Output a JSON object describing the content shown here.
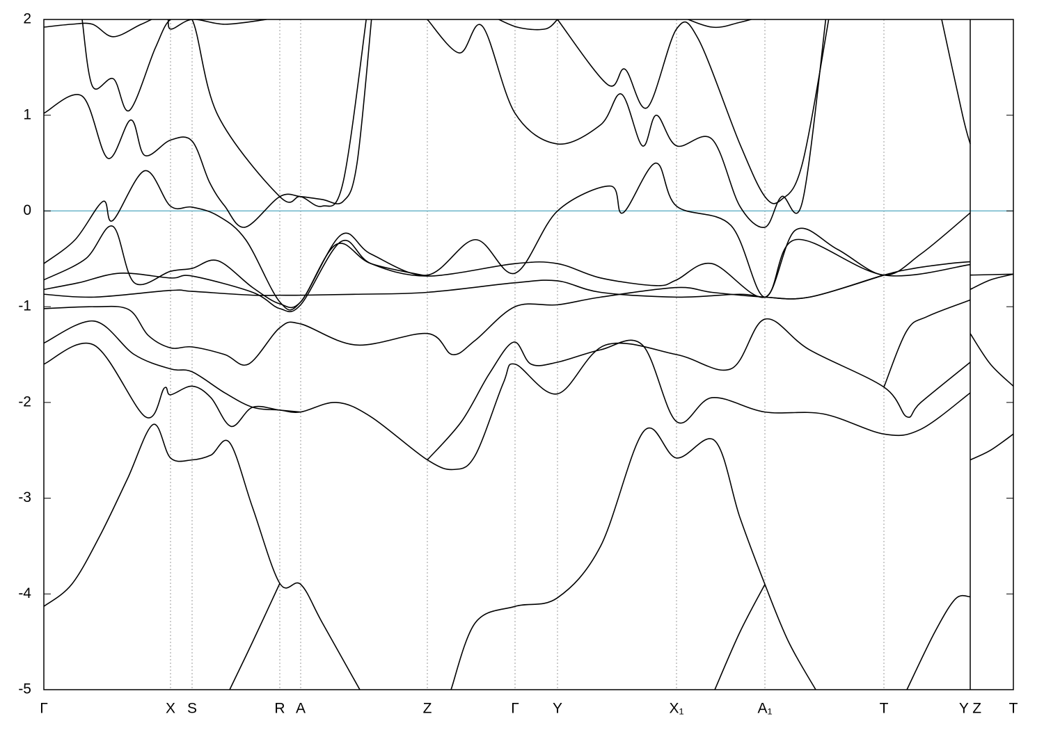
{
  "chart_data": {
    "type": "line",
    "xlim": [
      0,
      1393
    ],
    "ylim": [
      -5,
      2
    ],
    "yticks": [
      -5,
      -4,
      -3,
      -2,
      -1,
      0,
      1,
      2
    ],
    "xticks": [
      {
        "value": 0,
        "label": "Γ"
      },
      {
        "value": 182,
        "label": "X"
      },
      {
        "value": 213,
        "label": "S"
      },
      {
        "value": 339,
        "label": "R"
      },
      {
        "value": 369,
        "label": "A"
      },
      {
        "value": 551,
        "label": "Z"
      },
      {
        "value": 677,
        "label": "Γ"
      },
      {
        "value": 738,
        "label": "Y"
      },
      {
        "value": 909,
        "label": "X₁"
      },
      {
        "value": 1036,
        "label": "A₁"
      },
      {
        "value": 1207,
        "label": "T"
      },
      {
        "value": 1331,
        "label": "Y Z"
      },
      {
        "value": 1393,
        "label": "T"
      }
    ],
    "grid": true,
    "boundary_x": 1331,
    "reference_line": {
      "value": 0,
      "color": "#6ab4c8"
    },
    "series": [
      {
        "color": "#000000",
        "x": [
          0,
          40,
          80,
          120,
          157,
          182,
          213,
          240,
          267,
          300,
          339,
          369,
          400,
          454
        ],
        "values": [
          -4.13,
          -3.9,
          -3.4,
          -2.8,
          -2.23,
          -2.58,
          -2.6,
          -2.55,
          -2.42,
          -3.1,
          -3.89,
          -3.9,
          -4.3,
          -5
        ]
      },
      {
        "color": "#000000",
        "x": [
          267,
          300,
          339
        ],
        "values": [
          -5,
          -4.5,
          -3.89
        ]
      },
      {
        "color": "#000000",
        "x": [
          585,
          620,
          677,
          738,
          800,
          862,
          909,
          964,
          1000,
          1036,
          1070,
          1109
        ],
        "values": [
          -5,
          -4.3,
          -4.13,
          -4.04,
          -3.5,
          -2.3,
          -2.58,
          -2.4,
          -3.2,
          -3.9,
          -4.5,
          -5
        ]
      },
      {
        "color": "#000000",
        "x": [
          964,
          1000,
          1036
        ],
        "values": [
          -5,
          -4.4,
          -3.9
        ]
      },
      {
        "color": "#000000",
        "x": [
          1240,
          1280,
          1310,
          1331
        ],
        "values": [
          -5,
          -4.4,
          -4.05,
          -4.03
        ]
      },
      {
        "color": "#000000",
        "x": [
          0,
          72,
          146,
          173,
          182,
          213,
          240,
          269,
          300,
          339,
          369,
          420,
          470,
          551,
          590,
          620,
          660,
          677,
          738,
          807,
          909,
          987,
          1036,
          1100,
          1207,
          1240,
          1260,
          1331
        ],
        "values": [
          -1.6,
          -1.4,
          -2.15,
          -1.85,
          -1.92,
          -1.83,
          -1.95,
          -2.25,
          -2.05,
          -2.08,
          -2.1,
          -2.0,
          -2.15,
          -2.6,
          -2.7,
          -2.55,
          -1.8,
          -1.6,
          -1.91,
          -1.4,
          -1.5,
          -1.65,
          -1.13,
          -1.45,
          -1.84,
          -2.15,
          -2.0,
          -1.58
        ]
      },
      {
        "color": "#000000",
        "x": [
          0,
          72,
          130,
          182,
          213,
          260,
          300,
          339,
          369
        ],
        "values": [
          -1.38,
          -1.15,
          -1.5,
          -1.65,
          -1.68,
          -1.9,
          -2.05,
          -2.08,
          -2.1
        ]
      },
      {
        "color": "#000000",
        "x": [
          551,
          600,
          640,
          675,
          700,
          738,
          800,
          860,
          909,
          960,
          1036,
          1120,
          1207,
          1260,
          1331
        ],
        "values": [
          -2.6,
          -2.2,
          -1.7,
          -1.37,
          -1.6,
          -1.58,
          -1.45,
          -1.4,
          -2.2,
          -1.95,
          -2.1,
          -2.12,
          -2.33,
          -2.28,
          -1.9
        ]
      },
      {
        "color": "#000000",
        "x": [
          0,
          72,
          122,
          150,
          182,
          213,
          260,
          294,
          339,
          369,
          449,
          551,
          587,
          620,
          677,
          738,
          800,
          909,
          960,
          1036,
          1100,
          1207,
          1250,
          1300,
          1331
        ],
        "values": [
          -1.02,
          -1.0,
          -1.03,
          -1.3,
          -1.43,
          -1.42,
          -1.5,
          -1.6,
          -1.22,
          -1.18,
          -1.4,
          -1.28,
          -1.5,
          -1.35,
          -1.0,
          -0.98,
          -0.9,
          -0.8,
          -0.85,
          -0.9,
          -0.9,
          -0.67,
          -0.6,
          -0.55,
          -0.53
        ]
      },
      {
        "color": "#000000",
        "x": [
          0,
          72,
          182,
          213,
          300,
          339,
          369,
          450,
          551,
          677,
          738,
          800,
          909,
          1000,
          1036,
          1100,
          1207
        ],
        "values": [
          -0.87,
          -0.9,
          -0.83,
          -0.84,
          -0.88,
          -0.88,
          -0.88,
          -0.87,
          -0.85,
          -0.75,
          -0.73,
          -0.85,
          -0.9,
          -0.87,
          -0.9,
          -0.9,
          -0.67
        ]
      },
      {
        "color": "#000000",
        "x": [
          0,
          45,
          85,
          99,
          145,
          182,
          213,
          250,
          290,
          339,
          369,
          427,
          470,
          551,
          620,
          677,
          738,
          814,
          832,
          879,
          909,
          987,
          1036,
          1080,
          1140,
          1207,
          1260,
          1331
        ],
        "values": [
          -0.55,
          -0.3,
          0.1,
          -0.1,
          0.42,
          0.05,
          0.04,
          -0.05,
          -0.3,
          -0.95,
          -0.95,
          -0.25,
          -0.45,
          -0.67,
          -0.3,
          -0.65,
          0.0,
          0.26,
          -0.02,
          0.5,
          0.05,
          -0.15,
          -0.9,
          -0.2,
          -0.4,
          -0.67,
          -0.45,
          -0.02
        ]
      },
      {
        "color": "#000000",
        "x": [
          0,
          60,
          99,
          130,
          182,
          213,
          250,
          300,
          339,
          369,
          420,
          470,
          551
        ],
        "values": [
          -0.72,
          -0.5,
          -0.16,
          -0.75,
          -0.63,
          -0.6,
          -0.52,
          -0.8,
          -0.97,
          -0.95,
          -0.35,
          -0.55,
          -0.68
        ]
      },
      {
        "color": "#000000",
        "x": [
          0,
          50,
          110,
          182,
          213,
          300,
          339,
          369,
          427,
          470,
          551,
          677,
          738,
          800,
          880,
          909,
          960,
          1036,
          1080,
          1207,
          1331
        ],
        "values": [
          -0.82,
          -0.75,
          -0.65,
          -0.7,
          -0.68,
          -0.85,
          -1.02,
          -0.98,
          -0.32,
          -0.55,
          -0.68,
          -0.55,
          -0.55,
          -0.7,
          -0.78,
          -0.72,
          -0.55,
          -0.9,
          -0.3,
          -0.67,
          -0.56
        ]
      },
      {
        "color": "#000000",
        "x": [
          1207,
          1240,
          1270,
          1331
        ],
        "values": [
          -1.84,
          -1.25,
          -1.1,
          -0.93
        ]
      },
      {
        "color": "#000000",
        "x": [
          0,
          55,
          92,
          125,
          145,
          182,
          213,
          238,
          260,
          289,
          339,
          369,
          400,
          430,
          450,
          472
        ],
        "values": [
          1.02,
          1.2,
          0.55,
          0.95,
          0.58,
          0.74,
          0.73,
          0.3,
          0.05,
          -0.17,
          0.15,
          0.15,
          0.12,
          0.1,
          0.5,
          2.1
        ]
      },
      {
        "color": "#000000",
        "x": [
          55,
          70,
          100,
          123,
          160,
          182,
          213,
          250,
          339,
          369,
          400,
          430,
          465
        ],
        "values": [
          2.0,
          1.3,
          1.38,
          1.05,
          1.7,
          2.0,
          2.0,
          1.0,
          0.15,
          0.15,
          0.05,
          0.3,
          2.1
        ]
      },
      {
        "color": "#000000",
        "x": [
          0,
          40,
          70,
          100,
          140,
          175,
          182,
          213,
          260,
          320
        ],
        "values": [
          1.92,
          1.95,
          1.95,
          1.82,
          1.95,
          2.05,
          1.9,
          2.0,
          1.95,
          2.0
        ]
      },
      {
        "color": "#000000",
        "x": [
          551,
          597,
          630,
          677,
          738,
          800,
          830,
          860,
          880,
          909,
          960,
          1000,
          1036,
          1060,
          1090,
          1125
        ],
        "values": [
          2.0,
          1.65,
          1.93,
          1.02,
          0.7,
          0.9,
          1.22,
          0.68,
          1.0,
          0.68,
          0.75,
          0.05,
          -0.17,
          0.15,
          0.1,
          2.1
        ]
      },
      {
        "color": "#000000",
        "x": [
          738,
          810,
          835,
          867,
          909,
          940,
          1000,
          1036,
          1060,
          1090,
          1130
        ],
        "values": [
          2.0,
          1.32,
          1.48,
          1.08,
          1.9,
          1.8,
          0.7,
          0.15,
          0.12,
          0.5,
          2.1
        ]
      },
      {
        "color": "#000000",
        "x": [
          640,
          680,
          720,
          738
        ],
        "values": [
          2.05,
          1.92,
          1.9,
          2.0
        ]
      },
      {
        "color": "#000000",
        "x": [
          909,
          960,
          1000,
          1040
        ],
        "values": [
          2.05,
          1.92,
          1.97,
          2.05
        ]
      },
      {
        "color": "#000000",
        "x": [
          1290,
          1320,
          1331
        ],
        "values": [
          2.0,
          1.0,
          0.7
        ]
      },
      {
        "color": "#000000",
        "x": [
          1331,
          1360,
          1393
        ],
        "values": [
          -0.82,
          -0.72,
          -0.66
        ]
      },
      {
        "color": "#000000",
        "x": [
          1331,
          1360,
          1393
        ],
        "values": [
          -1.28,
          -1.6,
          -1.83
        ]
      },
      {
        "color": "#000000",
        "x": [
          1331,
          1360,
          1393
        ],
        "values": [
          -2.6,
          -2.5,
          -2.33
        ]
      },
      {
        "color": "#000000",
        "x": [
          1331,
          1393
        ],
        "values": [
          -0.67,
          -0.66
        ]
      }
    ]
  }
}
